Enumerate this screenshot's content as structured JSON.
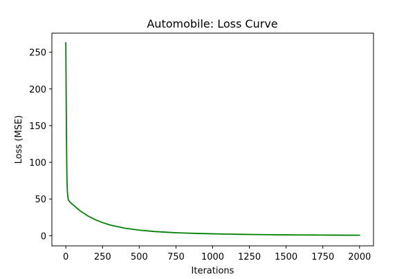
{
  "chart_data": {
    "type": "line",
    "title": "Automobile: Loss Curve",
    "xlabel": "Iterations",
    "ylabel": "Loss (MSE)",
    "xlim": [
      -95,
      2095
    ],
    "ylim": [
      -13.8,
      276.0
    ],
    "xticks": [
      0,
      250,
      500,
      750,
      1000,
      1250,
      1500,
      1750,
      2000
    ],
    "yticks": [
      0,
      50,
      100,
      150,
      200,
      250
    ],
    "grid": false,
    "legend": "none",
    "series": [
      {
        "color": "#008000",
        "x": [
          0,
          2,
          4,
          6,
          8,
          10,
          13,
          16,
          20,
          25,
          30,
          40,
          50,
          75,
          100,
          150,
          200,
          250,
          300,
          400,
          500,
          600,
          700,
          750,
          800,
          900,
          1000,
          1100,
          1200,
          1250,
          1300,
          1400,
          1500,
          1600,
          1700,
          1750,
          1800,
          1900,
          2000
        ],
        "y": [
          263,
          200,
          140,
          100,
          75,
          62,
          54,
          50,
          48,
          46.5,
          45.5,
          43.7,
          42,
          37.6,
          33.5,
          27.0,
          21.9,
          17.9,
          14.7,
          10.3,
          7.6,
          5.8,
          4.6,
          4.1,
          3.7,
          3.1,
          2.6,
          2.2,
          1.9,
          1.75,
          1.6,
          1.4,
          1.2,
          1.05,
          0.95,
          0.9,
          0.85,
          0.75,
          0.7
        ]
      }
    ]
  }
}
